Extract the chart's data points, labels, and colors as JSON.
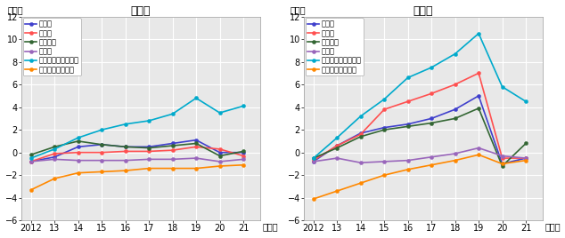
{
  "years": [
    2012,
    2013,
    2014,
    2015,
    2016,
    2017,
    2018,
    2019,
    2020,
    2021
  ],
  "title_left": "住宅地",
  "title_right": "商業地",
  "ylabel": "（％）",
  "xlabel": "（年）",
  "ylim": [
    -6,
    12
  ],
  "yticks": [
    -6,
    -4,
    -2,
    0,
    2,
    4,
    6,
    8,
    10,
    12
  ],
  "legend_labels": [
    "東京圈",
    "大阪圈",
    "名古屋圈",
    "地方圈",
    "地方圈（地方四市）",
    "地方圈（その他）"
  ],
  "colors": [
    "#4040cc",
    "#ff5050",
    "#336633",
    "#9966bb",
    "#00aacc",
    "#ff8800"
  ],
  "residential": {
    "tokyo": [
      -0.8,
      -0.4,
      0.5,
      0.7,
      0.5,
      0.5,
      0.8,
      1.1,
      0.0,
      0.0
    ],
    "osaka": [
      -0.8,
      -0.1,
      0.0,
      0.0,
      0.1,
      0.1,
      0.2,
      0.5,
      0.3,
      -0.3
    ],
    "nagoya": [
      -0.2,
      0.5,
      1.0,
      0.7,
      0.5,
      0.4,
      0.6,
      0.8,
      -0.3,
      0.1
    ],
    "chiho": [
      -0.8,
      -0.6,
      -0.7,
      -0.7,
      -0.7,
      -0.6,
      -0.6,
      -0.5,
      -0.8,
      -0.6
    ],
    "chihoshi": [
      -0.5,
      0.3,
      1.3,
      2.0,
      2.5,
      2.8,
      3.4,
      4.8,
      3.5,
      4.1
    ],
    "chihoother": [
      -3.3,
      -2.3,
      -1.8,
      -1.7,
      -1.6,
      -1.4,
      -1.4,
      -1.4,
      -1.2,
      -1.1
    ]
  },
  "commercial": {
    "tokyo": [
      -0.8,
      0.6,
      1.7,
      2.2,
      2.5,
      3.0,
      3.8,
      5.0,
      -1.0,
      -0.5
    ],
    "osaka": [
      -0.7,
      0.6,
      1.6,
      3.8,
      4.5,
      5.2,
      6.0,
      7.0,
      -0.5,
      -0.5
    ],
    "nagoya": [
      -0.5,
      0.4,
      1.4,
      2.0,
      2.3,
      2.6,
      3.0,
      3.9,
      -1.2,
      0.8
    ],
    "chiho": [
      -0.8,
      -0.5,
      -0.9,
      -0.8,
      -0.7,
      -0.4,
      -0.1,
      0.4,
      -0.3,
      -0.5
    ],
    "chihoshi": [
      -0.5,
      1.3,
      3.2,
      4.7,
      6.6,
      7.5,
      8.7,
      10.5,
      5.8,
      4.5
    ],
    "chihoother": [
      -4.1,
      -3.4,
      -2.7,
      -2.0,
      -1.5,
      -1.1,
      -0.7,
      -0.2,
      -1.0,
      -0.7
    ]
  },
  "bg_color": "#e8e8e8",
  "fig_bg": "#ffffff",
  "grid_color": "#ffffff",
  "line_width": 1.2,
  "marker_size": 3.0,
  "font_size_title": 9,
  "font_size_legend": 6.0,
  "font_size_tick": 7,
  "font_size_ylabel": 7
}
